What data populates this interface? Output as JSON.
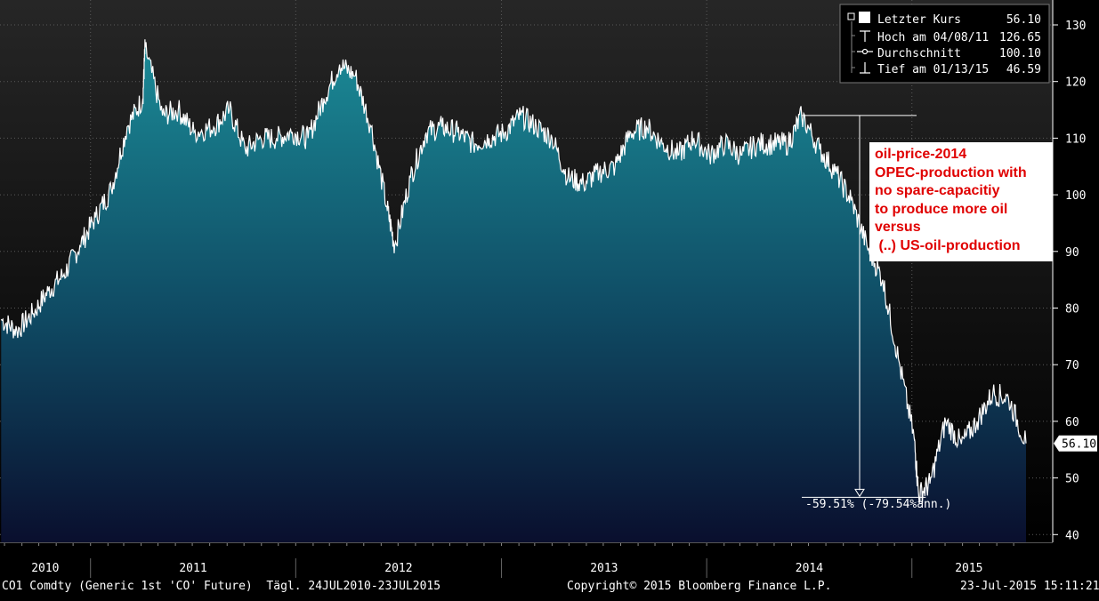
{
  "chart_data": {
    "type": "area",
    "ylim": [
      38,
      134
    ],
    "y_ticks": [
      130,
      120,
      110,
      100,
      90,
      80,
      70,
      60,
      50,
      40
    ],
    "x_tick_labels": [
      "2010",
      "2011",
      "2012",
      "2013",
      "2014",
      "2015"
    ],
    "x_range": [
      "2010-07-24",
      "2015-07-23"
    ],
    "grid": true,
    "series": [
      {
        "x": [
          "2010-07-26",
          "2010-08-23",
          "2010-09-20",
          "2010-10-18",
          "2010-11-15",
          "2010-12-13",
          "2011-01-10",
          "2011-02-07",
          "2011-03-07",
          "2011-04-04",
          "2011-04-08",
          "2011-05-09",
          "2011-06-06",
          "2011-07-04",
          "2011-08-08",
          "2011-09-05",
          "2011-10-03",
          "2011-10-31",
          "2011-11-28",
          "2011-12-26",
          "2012-01-23",
          "2012-02-20",
          "2012-03-19",
          "2012-04-16",
          "2012-05-14",
          "2012-06-11",
          "2012-06-25",
          "2012-07-23",
          "2012-08-20",
          "2012-09-17",
          "2012-10-15",
          "2012-11-12",
          "2012-12-10",
          "2013-01-07",
          "2013-02-04",
          "2013-03-04",
          "2013-04-01",
          "2013-04-29",
          "2013-05-27",
          "2013-06-24",
          "2013-07-22",
          "2013-08-19",
          "2013-09-16",
          "2013-10-14",
          "2013-11-11",
          "2013-12-09",
          "2014-01-06",
          "2014-02-03",
          "2014-03-03",
          "2014-03-31",
          "2014-04-28",
          "2014-05-26",
          "2014-06-19",
          "2014-07-21",
          "2014-08-18",
          "2014-09-15",
          "2014-10-13",
          "2014-11-10",
          "2014-12-08",
          "2015-01-05",
          "2015-01-13",
          "2015-02-02",
          "2015-03-02",
          "2015-03-30",
          "2015-04-27",
          "2015-05-25",
          "2015-06-22",
          "2015-07-23"
        ],
        "y": [
          78,
          76,
          79,
          83,
          86,
          91,
          96,
          101,
          112,
          117,
          126,
          114,
          115,
          111,
          112,
          115,
          108,
          110,
          110,
          111,
          110,
          117,
          123,
          121,
          112,
          98,
          91,
          103,
          111,
          112,
          111,
          109,
          110,
          111,
          114,
          112,
          110,
          103,
          102,
          104,
          105,
          111,
          112,
          109,
          107,
          110,
          107,
          109,
          107,
          109,
          109,
          109,
          114,
          108,
          104,
          99,
          91,
          85,
          71,
          57,
          47,
          49,
          60,
          56,
          60,
          65,
          64,
          56.1
        ]
      }
    ]
  },
  "legend": {
    "rows": [
      {
        "label": "Letzter Kurs",
        "value": "56.10"
      },
      {
        "label": "Hoch am 04/08/11",
        "value": "126.65"
      },
      {
        "label": "Durchschnitt",
        "value": "100.10"
      },
      {
        "label": "Tief am 01/13/15",
        "value": "46.59"
      }
    ]
  },
  "last_price_label": "56.10",
  "drawdown_label": "-59.51% (-79.54%ann.)",
  "annotation": {
    "lines": [
      "oil-price-2014",
      "OPEC-production with",
      "no spare-capacitiy",
      "to produce more oil",
      "versus",
      " (..) US-oil-production"
    ]
  },
  "footer": {
    "left": "CO1 Comdty (Generic 1st 'CO' Future)  Tägl. 24JUL2010-23JUL2015",
    "center": "Copyright© 2015 Bloomberg Finance L.P.",
    "right": "23-Jul-2015 15:11:21"
  },
  "colors": {
    "area_top": "#1b8b97",
    "area_bottom": "#0a0f2e",
    "plot_bg_top": "#232323",
    "plot_bg_bottom": "#000000",
    "line": "#ffffff",
    "annotation_text": "#e00000"
  }
}
